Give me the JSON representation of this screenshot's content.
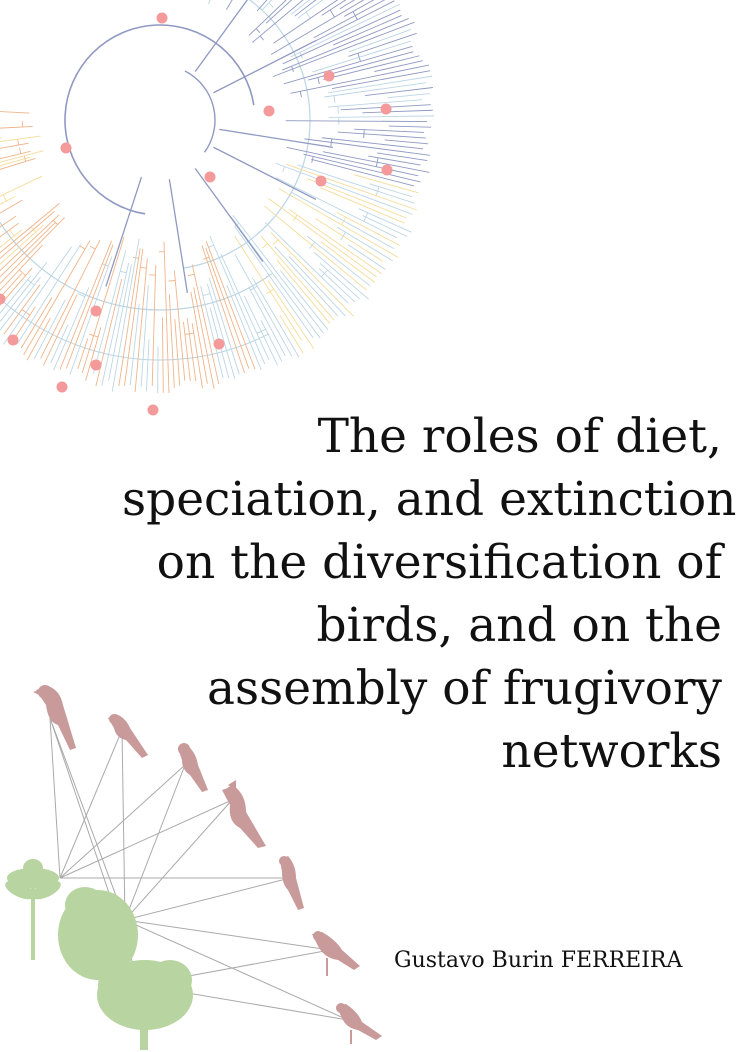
{
  "cover": {
    "title_lines": [
      "The roles of diet,",
      "speciation, and extinction",
      "on the diversification of",
      "birds, and on the",
      "assembly of frugivory",
      "networks"
    ],
    "author": "Gustavo Burin FERREIRA"
  },
  "colors": {
    "tree_blue": "#8f99c2",
    "tree_light_blue": "#bcd6e4",
    "tree_orange": "#f0b48a",
    "tree_yellow": "#f5dc9a",
    "node_dot": "#f59a9a",
    "bird": "#c99a9a",
    "plant": "#b8d4a0",
    "network_line": "#aaaaaa"
  },
  "icons": {
    "phylogeny": "phylogenetic-tree-icon",
    "bird": "bird-silhouette-icon",
    "tree": "tree-silhouette-icon",
    "palm": "palm-silhouette-icon"
  }
}
